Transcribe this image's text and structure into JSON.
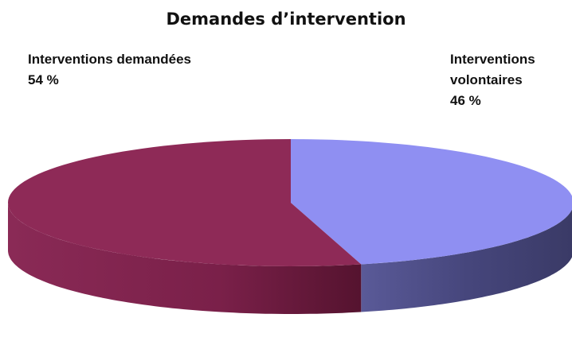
{
  "chart_data": {
    "type": "pie",
    "title": "Demandes d’intervention",
    "categories": [
      "Interventions demandées",
      "Interventions volontaires"
    ],
    "values": [
      54,
      46
    ],
    "value_labels": [
      "54 %",
      "46 %"
    ],
    "colors": [
      "#8e2a57",
      "#8f8ff2"
    ]
  }
}
